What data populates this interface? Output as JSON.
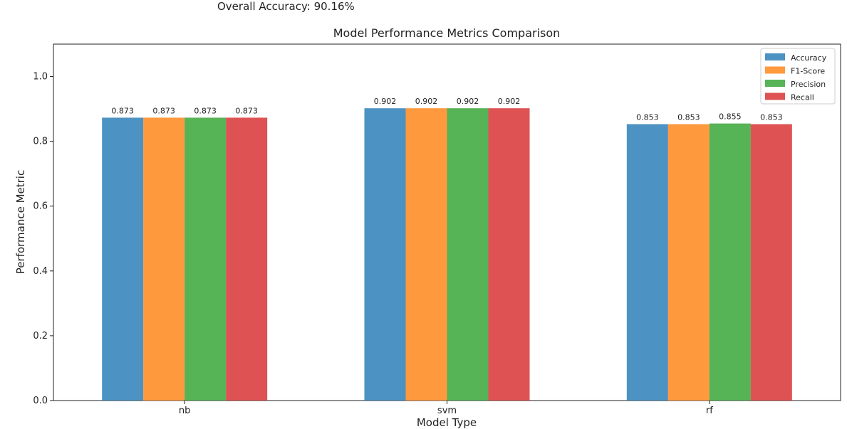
{
  "header": {
    "accuracy_text": "Overall Accuracy: 90.16%"
  },
  "chart_data": {
    "type": "bar",
    "title": "Model Performance Metrics Comparison",
    "xlabel": "Model Type",
    "ylabel": "Performance Metric",
    "categories": [
      "nb",
      "svm",
      "rf"
    ],
    "ylim": [
      0,
      1.1
    ],
    "yticks": [
      "0.0",
      "0.2",
      "0.4",
      "0.6",
      "0.8",
      "1.0"
    ],
    "grid": false,
    "legend_position": "top-right",
    "series": [
      {
        "name": "Accuracy",
        "color": "#1f77b4",
        "values": [
          0.873,
          0.902,
          0.853
        ],
        "labels": [
          "0.873",
          "0.902",
          "0.853"
        ]
      },
      {
        "name": "F1-Score",
        "color": "#ff7f0e",
        "values": [
          0.873,
          0.902,
          0.853
        ],
        "labels": [
          "0.873",
          "0.902",
          "0.853"
        ]
      },
      {
        "name": "Precision",
        "color": "#2ca02c",
        "values": [
          0.873,
          0.902,
          0.855
        ],
        "labels": [
          "0.873",
          "0.902",
          "0.855"
        ]
      },
      {
        "name": "Recall",
        "color": "#d62728",
        "values": [
          0.873,
          0.902,
          0.853
        ],
        "labels": [
          "0.873",
          "0.902",
          "0.853"
        ]
      }
    ]
  }
}
